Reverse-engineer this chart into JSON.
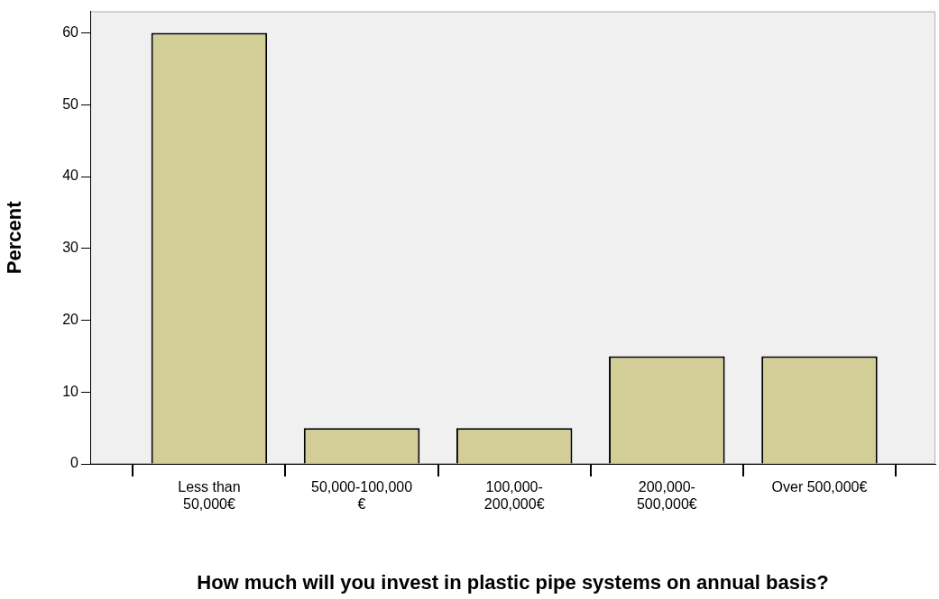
{
  "chart_data": {
    "type": "bar",
    "xlabel": "How much will you invest in plastic pipe systems on annual basis?",
    "ylabel": "Percent",
    "categories": [
      "Less than 50,000€",
      "50,000-100,000 €",
      "100,000-200,000€",
      "200,000-500,000€",
      "Over 500,000€"
    ],
    "values": [
      60,
      5,
      5,
      15,
      15
    ],
    "color": "#d3ce97",
    "ylim": [
      0,
      63
    ],
    "yticks": [
      0,
      10,
      20,
      30,
      40,
      50,
      60
    ]
  }
}
